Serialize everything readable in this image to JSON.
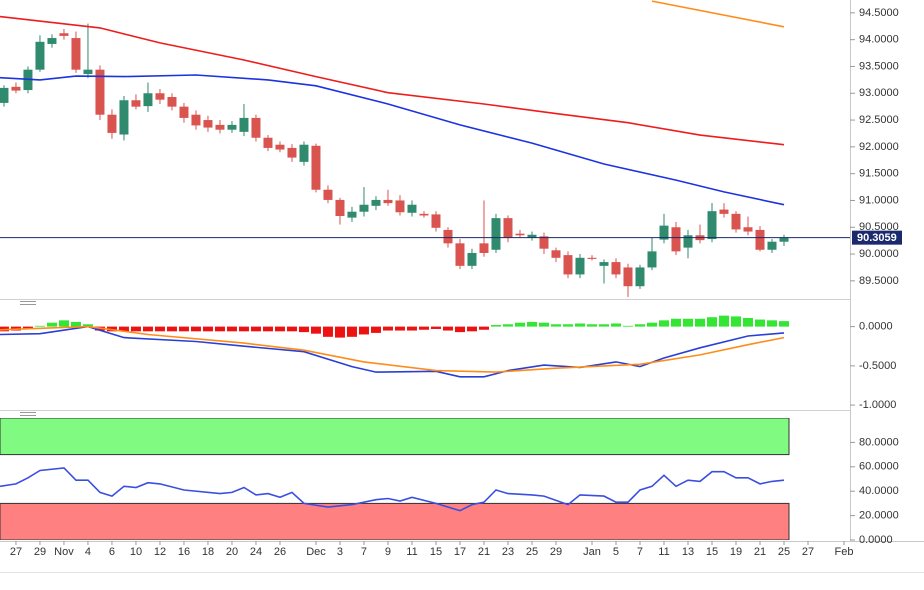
{
  "chart_data": [
    {
      "type": "candlestick",
      "xlim": [
        -0.33,
        70.5
      ],
      "xticks": [
        {
          "value": 1,
          "label": "27"
        },
        {
          "value": 3,
          "label": "29"
        },
        {
          "value": 5,
          "label": "Nov"
        },
        {
          "value": 7,
          "label": "4"
        },
        {
          "value": 9,
          "label": "6"
        },
        {
          "value": 11,
          "label": "10"
        },
        {
          "value": 13,
          "label": "12"
        },
        {
          "value": 15,
          "label": "16"
        },
        {
          "value": 17,
          "label": "18"
        },
        {
          "value": 19,
          "label": "20"
        },
        {
          "value": 21,
          "label": "24"
        },
        {
          "value": 23,
          "label": "26"
        },
        {
          "value": 26,
          "label": "Dec"
        },
        {
          "value": 28,
          "label": "3"
        },
        {
          "value": 30,
          "label": "7"
        },
        {
          "value": 32,
          "label": "9"
        },
        {
          "value": 34,
          "label": "11"
        },
        {
          "value": 36,
          "label": "15"
        },
        {
          "value": 38,
          "label": "17"
        },
        {
          "value": 40,
          "label": "21"
        },
        {
          "value": 42,
          "label": "23"
        },
        {
          "value": 44,
          "label": "25"
        },
        {
          "value": 46,
          "label": "29"
        },
        {
          "value": 49,
          "label": "Jan"
        },
        {
          "value": 51,
          "label": "5"
        },
        {
          "value": 53,
          "label": "7"
        },
        {
          "value": 55,
          "label": "11"
        },
        {
          "value": 57,
          "label": "13"
        },
        {
          "value": 59,
          "label": "15"
        },
        {
          "value": 61,
          "label": "19"
        },
        {
          "value": 63,
          "label": "21"
        },
        {
          "value": 65,
          "label": "25"
        },
        {
          "value": 67,
          "label": "27"
        },
        {
          "value": 70,
          "label": "Feb"
        }
      ],
      "ylim": [
        89.18,
        94.74
      ],
      "yticks": [
        {
          "value": 89.5,
          "label": "89.5000"
        },
        {
          "value": 90,
          "label": "90.0000"
        },
        {
          "value": 90.5,
          "label": "90.5000"
        },
        {
          "value": 91,
          "label": "91.0000"
        },
        {
          "value": 91.5,
          "label": "91.5000"
        },
        {
          "value": 92,
          "label": "92.0000"
        },
        {
          "value": 92.5,
          "label": "92.5000"
        },
        {
          "value": 93,
          "label": "93.0000"
        },
        {
          "value": 93.5,
          "label": "93.5000"
        },
        {
          "value": 94,
          "label": "94.0000"
        },
        {
          "value": 94.5,
          "label": "94.5000"
        }
      ],
      "up_color": "#2f8a6e",
      "down_color": "#d9534f",
      "x": [
        0,
        1,
        2,
        3,
        4,
        5,
        6,
        7,
        8,
        9,
        10,
        11,
        12,
        13,
        14,
        15,
        16,
        17,
        18,
        19,
        20,
        21,
        22,
        23,
        24,
        25,
        26,
        27,
        28,
        29,
        30,
        31,
        32,
        33,
        34,
        35,
        36,
        37,
        38,
        39,
        40,
        41,
        42,
        43,
        44,
        45,
        46,
        47,
        48,
        49,
        50,
        51,
        52,
        53,
        54,
        55,
        56,
        57,
        58,
        59,
        60,
        61,
        62,
        63,
        64,
        65
      ],
      "open": [
        92.82,
        93.12,
        93.06,
        93.44,
        93.92,
        94.12,
        94.03,
        93.36,
        93.44,
        92.6,
        92.23,
        92.87,
        92.76,
        93.0,
        92.93,
        92.75,
        92.6,
        92.5,
        92.41,
        92.32,
        92.28,
        92.54,
        92.17,
        92.04,
        91.98,
        91.72,
        92.02,
        91.2,
        91.01,
        90.68,
        90.79,
        90.9,
        91.01,
        91.0,
        90.77,
        90.75,
        90.74,
        90.45,
        90.2,
        89.78,
        90.2,
        90.08,
        90.67,
        90.38,
        90.3,
        90.33,
        90.07,
        89.98,
        89.62,
        89.93,
        89.78,
        89.85,
        89.75,
        89.4,
        89.75,
        90.27,
        90.5,
        90.12,
        90.35,
        90.28,
        90.83,
        90.75,
        90.5,
        90.45,
        90.08,
        90.23
      ],
      "high": [
        93.15,
        93.2,
        93.5,
        94.08,
        94.1,
        94.2,
        94.15,
        94.3,
        93.52,
        92.7,
        92.95,
        92.98,
        93.2,
        93.08,
        93.0,
        92.82,
        92.68,
        92.58,
        92.5,
        92.48,
        92.8,
        92.6,
        92.22,
        92.1,
        92.05,
        92.1,
        92.06,
        91.28,
        91.05,
        90.88,
        91.25,
        91.08,
        91.2,
        91.1,
        91.0,
        90.8,
        90.8,
        90.5,
        90.28,
        90.1,
        91.0,
        90.75,
        90.72,
        90.45,
        90.42,
        90.4,
        90.12,
        90.05,
        90.0,
        89.98,
        89.9,
        89.92,
        89.82,
        89.8,
        90.3,
        90.75,
        90.6,
        90.45,
        90.55,
        90.95,
        90.95,
        90.8,
        90.7,
        90.52,
        90.28,
        90.36
      ],
      "low": [
        92.75,
        93.0,
        93.0,
        93.4,
        93.85,
        94.0,
        93.38,
        93.28,
        92.5,
        92.15,
        92.12,
        92.7,
        92.65,
        92.8,
        92.68,
        92.45,
        92.32,
        92.28,
        92.25,
        92.26,
        92.2,
        92.1,
        91.92,
        91.9,
        91.72,
        91.65,
        91.15,
        90.95,
        90.55,
        90.6,
        90.7,
        90.82,
        90.9,
        90.72,
        90.7,
        90.68,
        90.42,
        90.12,
        89.72,
        89.72,
        89.95,
        90.02,
        90.22,
        90.3,
        90.25,
        90.0,
        89.85,
        89.55,
        89.55,
        89.88,
        89.45,
        89.55,
        89.2,
        89.35,
        89.7,
        90.2,
        89.98,
        89.92,
        90.2,
        90.22,
        90.68,
        90.4,
        90.35,
        90.05,
        90.02,
        90.15
      ],
      "close": [
        93.1,
        93.05,
        93.44,
        93.96,
        94.03,
        94.07,
        93.44,
        93.44,
        92.6,
        92.26,
        92.87,
        92.75,
        93.0,
        92.88,
        92.75,
        92.54,
        92.4,
        92.36,
        92.32,
        92.41,
        92.54,
        92.17,
        91.98,
        91.95,
        91.8,
        92.04,
        91.2,
        91.01,
        90.71,
        90.79,
        90.92,
        91.01,
        90.95,
        90.78,
        90.92,
        90.72,
        90.49,
        90.2,
        89.78,
        90.02,
        90.02,
        90.67,
        90.3,
        90.35,
        90.36,
        90.1,
        89.93,
        89.62,
        89.93,
        89.91,
        89.85,
        89.62,
        89.4,
        89.75,
        90.05,
        90.53,
        90.05,
        90.35,
        90.26,
        90.8,
        90.75,
        90.46,
        90.42,
        90.08,
        90.23,
        90.31
      ],
      "series": [
        {
          "color": "#ee1c1c",
          "x": [
            -0.33,
            8,
            13,
            20,
            26,
            32,
            40,
            46,
            52,
            58,
            65
          ],
          "values": [
            94.43,
            94.22,
            93.94,
            93.62,
            93.31,
            93.01,
            92.8,
            92.62,
            92.45,
            92.22,
            92.04
          ]
        },
        {
          "color": "#1c33e0",
          "x": [
            -0.33,
            3,
            6,
            10,
            16,
            22,
            26,
            32,
            38,
            44,
            50,
            56,
            60,
            65
          ],
          "values": [
            93.29,
            93.25,
            93.32,
            93.31,
            93.34,
            93.25,
            93.14,
            92.8,
            92.41,
            92.07,
            91.68,
            91.38,
            91.16,
            90.92
          ]
        },
        {
          "color": "#ff8c1a",
          "x": [
            54,
            65
          ],
          "values": [
            94.72,
            94.24
          ]
        }
      ],
      "last_price": 90.3059,
      "last_price_color": "#1a2a6c"
    },
    {
      "type": "bar",
      "ylim": [
        -1.05,
        0.25
      ],
      "yticks": [
        {
          "value": -1,
          "label": "-1.0000"
        },
        {
          "value": -0.5,
          "label": "-0.5000"
        },
        {
          "value": 0,
          "label": "0.0000"
        }
      ],
      "positive_color": "#33e633",
      "negative_color": "#ee1111",
      "x": [
        0,
        1,
        2,
        3,
        4,
        5,
        6,
        7,
        8,
        9,
        10,
        11,
        12,
        13,
        14,
        15,
        16,
        17,
        18,
        19,
        20,
        21,
        22,
        23,
        24,
        25,
        26,
        27,
        28,
        29,
        30,
        31,
        32,
        33,
        34,
        35,
        36,
        37,
        38,
        39,
        40,
        41,
        42,
        43,
        44,
        45,
        46,
        47,
        48,
        49,
        50,
        51,
        52,
        53,
        54,
        55,
        56,
        57,
        58,
        59,
        60,
        61,
        62,
        63,
        64,
        65
      ],
      "values": [
        -0.06,
        -0.05,
        -0.03,
        0.01,
        0.05,
        0.08,
        0.06,
        0.03,
        -0.05,
        -0.06,
        -0.06,
        -0.06,
        -0.06,
        -0.06,
        -0.06,
        -0.06,
        -0.06,
        -0.06,
        -0.06,
        -0.06,
        -0.06,
        -0.06,
        -0.06,
        -0.06,
        -0.06,
        -0.07,
        -0.09,
        -0.13,
        -0.14,
        -0.13,
        -0.1,
        -0.08,
        -0.05,
        -0.05,
        -0.05,
        -0.04,
        -0.03,
        -0.05,
        -0.07,
        -0.06,
        -0.04,
        0.02,
        0.03,
        0.05,
        0.06,
        0.05,
        0.03,
        0.03,
        0.04,
        0.03,
        0.03,
        0.04,
        0.01,
        0.03,
        0.05,
        0.08,
        0.1,
        0.1,
        0.1,
        0.12,
        0.14,
        0.13,
        0.11,
        0.09,
        0.08,
        0.07
      ],
      "series": [
        {
          "color": "#2a3fd6",
          "x": [
            -0.33,
            3,
            7,
            10,
            16,
            20,
            25,
            29,
            31,
            36,
            38,
            40,
            42,
            45,
            48,
            51,
            53,
            55,
            58,
            62,
            65
          ],
          "values": [
            -0.1,
            -0.09,
            0.0,
            -0.14,
            -0.19,
            -0.25,
            -0.32,
            -0.51,
            -0.58,
            -0.57,
            -0.64,
            -0.64,
            -0.56,
            -0.49,
            -0.52,
            -0.45,
            -0.51,
            -0.4,
            -0.27,
            -0.12,
            -0.08
          ]
        },
        {
          "color": "#ff8c1a",
          "x": [
            -0.33,
            7,
            12,
            20,
            25,
            30,
            36,
            41,
            46,
            53,
            58,
            62,
            65
          ],
          "values": [
            -0.04,
            0.0,
            -0.1,
            -0.21,
            -0.3,
            -0.45,
            -0.56,
            -0.58,
            -0.53,
            -0.48,
            -0.36,
            -0.23,
            -0.14
          ]
        }
      ]
    },
    {
      "type": "line",
      "ylim": [
        0,
        100
      ],
      "yticks": [
        {
          "value": 0,
          "label": "0.0000"
        },
        {
          "value": 20,
          "label": "20.0000"
        },
        {
          "value": 40,
          "label": "40.0000"
        },
        {
          "value": 60,
          "label": "60.0000"
        },
        {
          "value": 80,
          "label": "80.0000"
        }
      ],
      "bands": [
        {
          "from": 70,
          "to": 100,
          "color": "#80fa80"
        },
        {
          "from": 0,
          "to": 30,
          "color": "#ff8080"
        }
      ],
      "band_end": 65,
      "series": [
        {
          "color": "#3a4fe0",
          "x": [
            -0.33,
            1,
            2,
            3,
            5,
            6,
            7,
            8,
            9,
            10,
            11,
            12,
            13,
            15,
            18,
            19,
            20,
            21,
            22,
            23,
            24,
            25,
            27,
            29,
            31,
            32,
            33,
            34,
            36,
            38,
            39,
            40,
            41,
            42,
            44,
            45,
            47,
            48,
            50,
            51,
            52,
            53,
            54,
            55,
            56,
            57,
            58,
            59,
            60,
            61,
            62,
            63,
            64,
            65
          ],
          "values": [
            44,
            46,
            51,
            57,
            59,
            49,
            49,
            39,
            36,
            44,
            43,
            47,
            46,
            41,
            38,
            39,
            43,
            37,
            38,
            35,
            39,
            30,
            27,
            29,
            33,
            34,
            32,
            35,
            30,
            24,
            29,
            31,
            41,
            38,
            37,
            36,
            29,
            37,
            36,
            31,
            31,
            41,
            44,
            53,
            44,
            49,
            48,
            56,
            56,
            51,
            51,
            46,
            48,
            49
          ]
        }
      ]
    }
  ]
}
